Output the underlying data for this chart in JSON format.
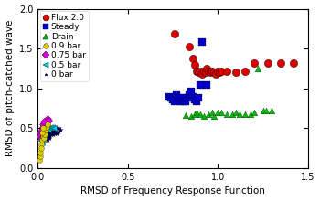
{
  "title": "",
  "xlabel": "RMSD of Frequency Response Function",
  "ylabel": "RMSD of pitch-catched wave",
  "xlim": [
    0,
    1.5
  ],
  "ylim": [
    0,
    2
  ],
  "xticks": [
    0,
    0.5,
    1.0,
    1.5
  ],
  "yticks": [
    0,
    0.5,
    1.0,
    1.5,
    2.0
  ],
  "flux2_x": [
    0.76,
    0.84,
    0.86,
    0.87,
    0.88,
    0.89,
    0.9,
    0.91,
    0.92,
    0.93,
    0.94,
    0.95,
    0.96,
    0.97,
    0.98,
    0.99,
    1.0,
    1.01,
    1.02,
    1.05,
    1.1,
    1.15,
    1.2,
    1.28,
    1.35,
    1.42
  ],
  "flux2_y": [
    1.68,
    1.52,
    1.38,
    1.3,
    1.22,
    1.2,
    1.22,
    1.18,
    1.22,
    1.2,
    1.25,
    1.22,
    1.2,
    1.22,
    1.2,
    1.18,
    1.22,
    1.2,
    1.22,
    1.22,
    1.2,
    1.22,
    1.32,
    1.32,
    1.32,
    1.32
  ],
  "steady_x": [
    0.73,
    0.74,
    0.75,
    0.76,
    0.77,
    0.78,
    0.79,
    0.8,
    0.81,
    0.82,
    0.83,
    0.84,
    0.85,
    0.86,
    0.87,
    0.88,
    0.89,
    0.9,
    0.91,
    0.94
  ],
  "steady_y": [
    0.9,
    0.88,
    0.86,
    0.84,
    0.92,
    0.88,
    0.84,
    0.88,
    0.84,
    0.84,
    0.88,
    0.92,
    0.96,
    0.9,
    0.86,
    0.84,
    0.88,
    1.04,
    1.58,
    1.04
  ],
  "drain_x": [
    0.82,
    0.85,
    0.87,
    0.88,
    0.9,
    0.92,
    0.95,
    0.97,
    0.98,
    1.0,
    1.02,
    1.05,
    1.08,
    1.1,
    1.12,
    1.15,
    1.18,
    1.2,
    1.22,
    1.25,
    1.27,
    1.3
  ],
  "drain_y": [
    0.67,
    0.65,
    0.68,
    0.7,
    0.68,
    0.65,
    0.68,
    0.7,
    0.65,
    0.7,
    0.7,
    0.68,
    0.68,
    0.7,
    0.68,
    0.68,
    0.68,
    0.7,
    1.25,
    0.72,
    0.72,
    0.72
  ],
  "bar09_x": [
    0.01,
    0.015,
    0.02,
    0.025,
    0.03,
    0.035,
    0.04,
    0.045,
    0.05,
    0.055,
    0.015,
    0.02,
    0.025,
    0.03
  ],
  "bar09_y": [
    0.1,
    0.15,
    0.3,
    0.35,
    0.4,
    0.38,
    0.42,
    0.48,
    0.52,
    0.55,
    0.2,
    0.25,
    0.45,
    0.5
  ],
  "bar075_x": [
    0.01,
    0.015,
    0.02,
    0.025,
    0.03,
    0.035,
    0.04,
    0.045,
    0.05,
    0.055,
    0.06,
    0.025,
    0.03,
    0.035
  ],
  "bar075_y": [
    0.4,
    0.45,
    0.42,
    0.48,
    0.52,
    0.56,
    0.58,
    0.6,
    0.6,
    0.62,
    0.6,
    0.38,
    0.55,
    0.58
  ],
  "bar05_x": [
    0.01,
    0.015,
    0.02,
    0.025,
    0.03,
    0.035,
    0.04,
    0.045,
    0.05,
    0.055,
    0.06,
    0.065,
    0.07,
    0.075,
    0.08,
    0.085,
    0.09,
    0.025,
    0.03,
    0.035,
    0.04
  ],
  "bar05_y": [
    0.35,
    0.4,
    0.38,
    0.42,
    0.45,
    0.5,
    0.48,
    0.52,
    0.55,
    0.52,
    0.48,
    0.5,
    0.52,
    0.5,
    0.52,
    0.5,
    0.5,
    0.32,
    0.36,
    0.4,
    0.44
  ],
  "bar0_x": [
    0.015,
    0.025,
    0.035,
    0.045,
    0.055,
    0.065,
    0.075,
    0.085,
    0.095,
    0.105,
    0.115,
    0.025,
    0.035,
    0.045,
    0.055,
    0.065,
    0.075,
    0.085,
    0.035,
    0.045,
    0.055,
    0.065,
    0.075,
    0.085,
    0.095,
    0.045,
    0.055,
    0.065,
    0.075,
    0.085,
    0.095,
    0.105,
    0.115,
    0.125,
    0.055,
    0.065
  ],
  "bar0_y": [
    0.44,
    0.46,
    0.48,
    0.48,
    0.48,
    0.48,
    0.48,
    0.48,
    0.5,
    0.5,
    0.5,
    0.42,
    0.44,
    0.44,
    0.46,
    0.46,
    0.46,
    0.48,
    0.4,
    0.42,
    0.44,
    0.44,
    0.44,
    0.46,
    0.46,
    0.38,
    0.4,
    0.4,
    0.42,
    0.42,
    0.44,
    0.44,
    0.46,
    0.48,
    0.36,
    0.38
  ],
  "flux2_color": "#dd0000",
  "steady_color": "#0000cc",
  "drain_color": "#00bb00",
  "bar09_color": "#ddcc00",
  "bar075_color": "#dd00dd",
  "bar05_color": "#00ccdd",
  "bar0_color": "#00004a",
  "legend_fontsize": 6.5,
  "axis_fontsize": 7.5,
  "tick_fontsize": 7
}
